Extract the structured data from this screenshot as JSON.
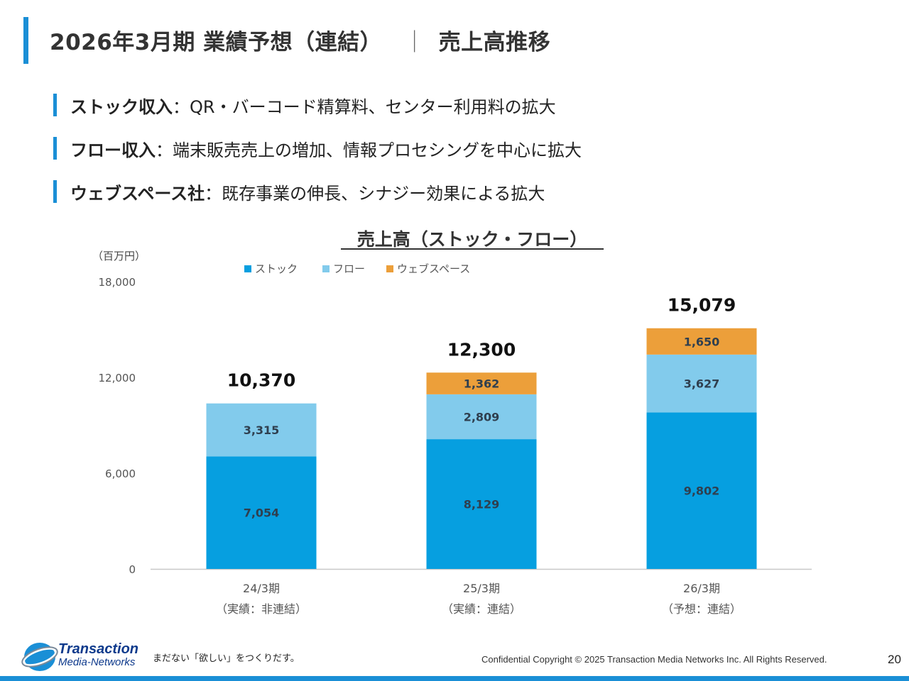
{
  "slide": {
    "title": "2026年3月期 業績予想（連結）",
    "title_sep": "｜",
    "title_sub": "売上高推移"
  },
  "bullets": [
    {
      "label": "ストック収入",
      "text": "：QR・バーコード精算料、センター利用料の拡大"
    },
    {
      "label": "フロー収入",
      "text": "：端末販売売上の増加、情報プロセシングを中心に拡大"
    },
    {
      "label": "ウェブスペース社",
      "text": "：既存事業の伸長、シナジー効果による拡大"
    }
  ],
  "chart_data": {
    "type": "bar",
    "stacked": true,
    "title": "売上高（ストック・フロー）",
    "unit_label": "（百万円）",
    "categories": [
      "24/3期",
      "25/3期",
      "26/3期"
    ],
    "category_sublabels": [
      "（実績：非連結）",
      "（実績：連結）",
      "（予想：連結）"
    ],
    "series": [
      {
        "name": "ストック",
        "color": "#069fe0",
        "values": [
          7054,
          8129,
          9802
        ]
      },
      {
        "name": "フロー",
        "color": "#82cbec",
        "values": [
          3315,
          2809,
          3627
        ]
      },
      {
        "name": "ウェブスペース",
        "color": "#ec9f3a",
        "values": [
          null,
          1362,
          1650
        ]
      }
    ],
    "value_labels": [
      [
        "7,054",
        "8,129",
        "9,802"
      ],
      [
        "3,315",
        "2,809",
        "3,627"
      ],
      [
        "",
        "1,362",
        "1,650"
      ]
    ],
    "totals": [
      10370,
      12300,
      15079
    ],
    "total_labels": [
      "10,370",
      "12,300",
      "15,079"
    ],
    "yticks": [
      0,
      6000,
      12000,
      18000
    ],
    "ytick_labels": [
      "0",
      "6,000",
      "12,000",
      "18,000"
    ],
    "ylim": [
      0,
      18000
    ],
    "legend_position": "top-left",
    "grid": false
  },
  "footer": {
    "logo_line1": "Transaction",
    "logo_line2": "Media-Networks",
    "tagline": "まだない「欲しい」をつくりだす。",
    "copyright": "Confidential  Copyright © 2025 Transaction Media Networks Inc. All Rights Reserved.",
    "page_number": "20"
  },
  "colors": {
    "accent": "#1a8fd6",
    "stock": "#069fe0",
    "flow": "#82cbec",
    "webspace": "#ec9f3a"
  }
}
